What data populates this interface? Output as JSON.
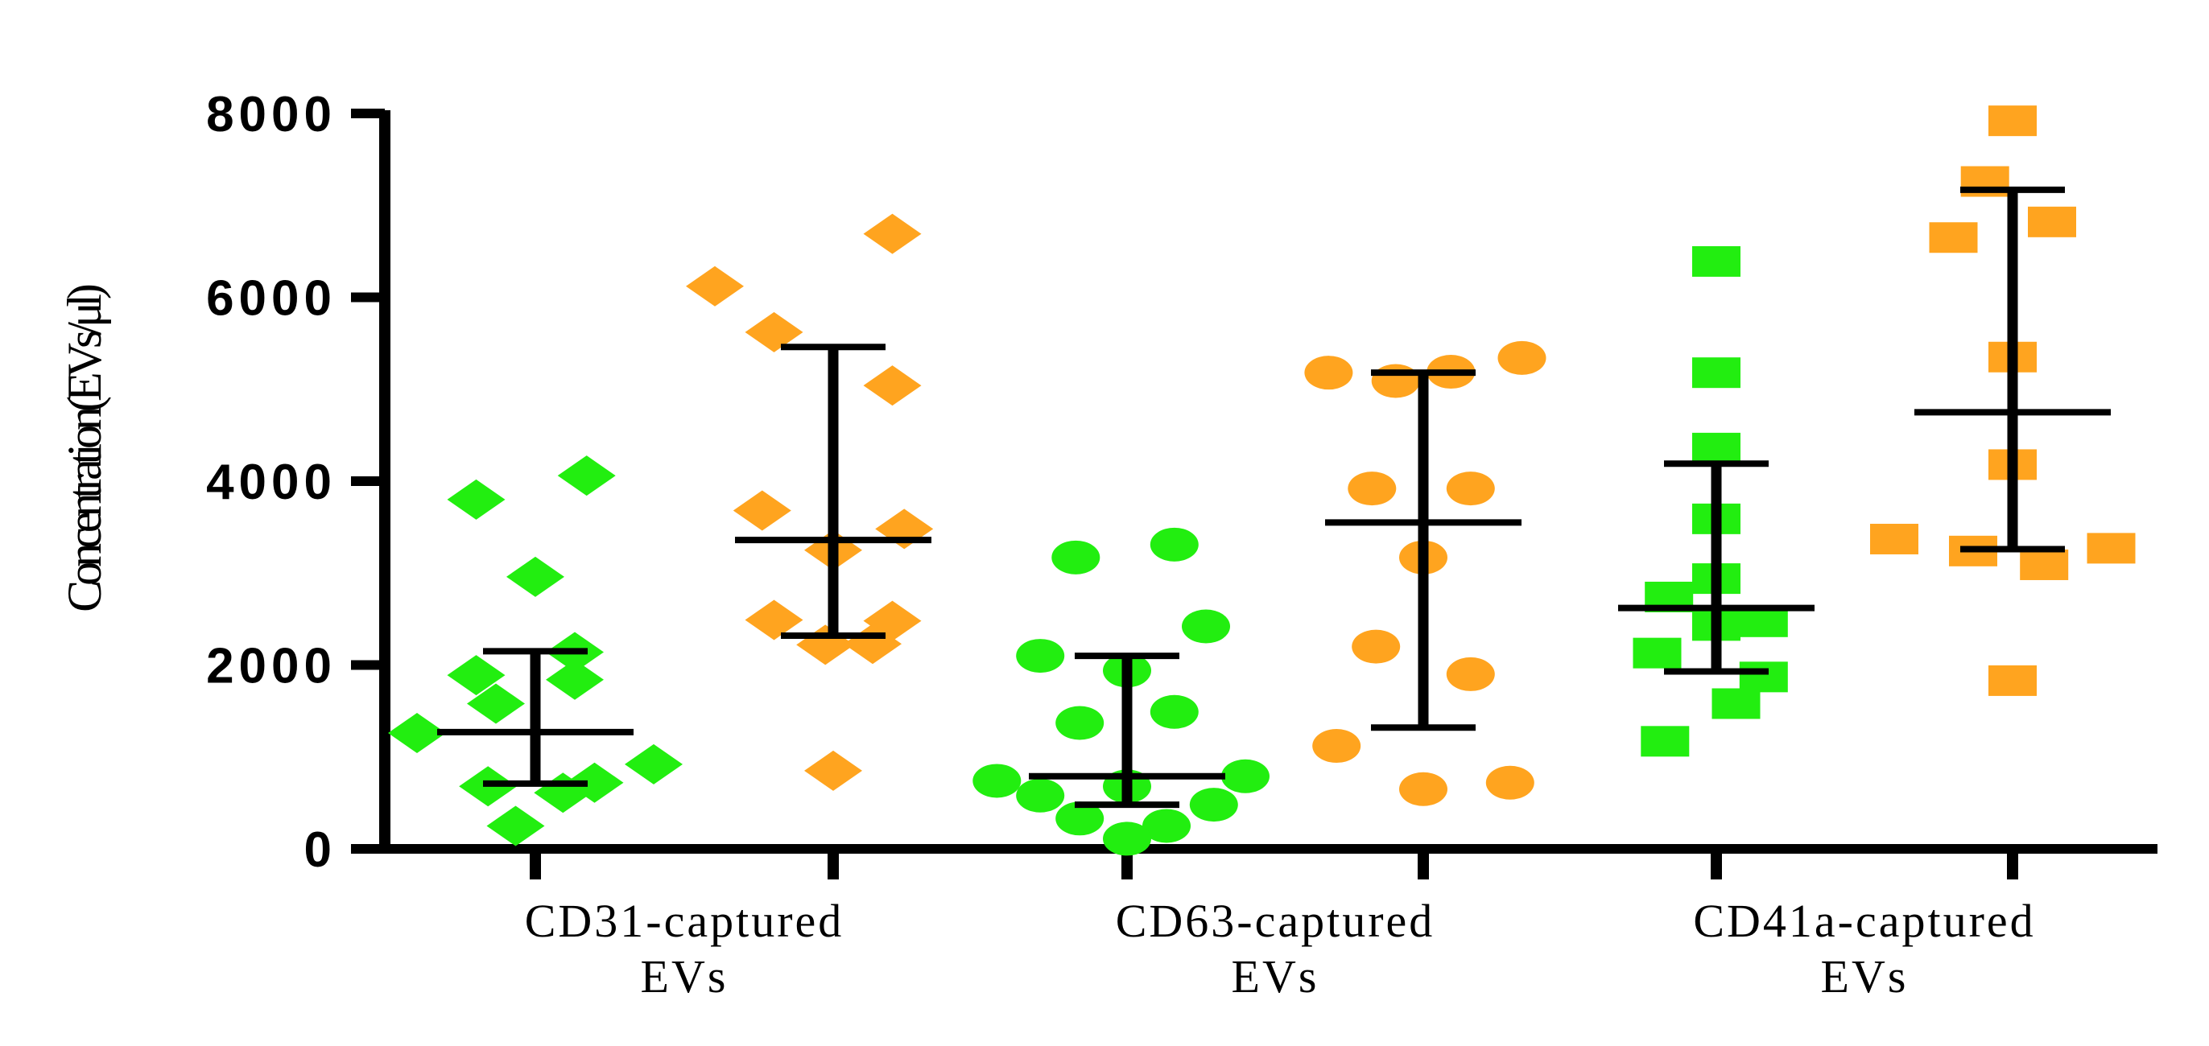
{
  "chart_data": {
    "type": "scatter",
    "title": "",
    "xlabel": "",
    "ylabel": "Concentration(EVs/μl)",
    "ylim": [
      0,
      8000
    ],
    "yticks": [
      0,
      2000,
      4000,
      6000,
      8000
    ],
    "yticks_text": [
      "0",
      "2000",
      "4000",
      "6000",
      "8000"
    ],
    "grid": false,
    "legend": "none",
    "colors": {
      "green": "#22ee10",
      "orange": "#ffa41f",
      "axis": "#000000",
      "errorbar": "#000000"
    },
    "categories": [
      {
        "label_line1": "CD31-captured",
        "label_line2": "EVs"
      },
      {
        "label_line1": "CD63-captured",
        "label_line2": "EVs"
      },
      {
        "label_line1": "CD41a-captured",
        "label_line2": "EVs"
      }
    ],
    "series": [
      {
        "name": "CD31-captured EVs (green)",
        "category": 0,
        "color": "green",
        "marker": "diamond",
        "points": [
          [
            -0.3,
            1260
          ],
          [
            -0.15,
            3800
          ],
          [
            0.13,
            4060
          ],
          [
            0.0,
            2960
          ],
          [
            -0.15,
            1890
          ],
          [
            0.1,
            2140
          ],
          [
            -0.1,
            1580
          ],
          [
            0.1,
            1840
          ],
          [
            -0.12,
            680
          ],
          [
            0.07,
            610
          ],
          [
            0.15,
            720
          ],
          [
            0.3,
            920
          ],
          [
            -0.05,
            250
          ]
        ],
        "mean": 1270,
        "err_low": 710,
        "err_high": 2150
      },
      {
        "name": "CD31-captured EVs (orange)",
        "category": 0,
        "color": "orange",
        "marker": "diamond",
        "points": [
          [
            -0.3,
            6120
          ],
          [
            -0.15,
            5620
          ],
          [
            0.15,
            6690
          ],
          [
            0.15,
            5040
          ],
          [
            -0.18,
            3680
          ],
          [
            0.18,
            3480
          ],
          [
            0.0,
            3250
          ],
          [
            -0.15,
            2490
          ],
          [
            0.15,
            2480
          ],
          [
            -0.02,
            2220
          ],
          [
            0.1,
            2230
          ],
          [
            0.0,
            850
          ]
        ],
        "mean": 3360,
        "err_low": 2320,
        "err_high": 5460
      },
      {
        "name": "CD63-captured EVs (green)",
        "category": 1,
        "color": "green",
        "marker": "circle",
        "points": [
          [
            -0.13,
            3170
          ],
          [
            0.12,
            3310
          ],
          [
            0.2,
            2420
          ],
          [
            -0.22,
            2100
          ],
          [
            0.0,
            1940
          ],
          [
            0.12,
            1490
          ],
          [
            -0.12,
            1370
          ],
          [
            -0.33,
            740
          ],
          [
            -0.22,
            580
          ],
          [
            0.0,
            680
          ],
          [
            0.3,
            790
          ],
          [
            0.22,
            480
          ],
          [
            -0.12,
            330
          ],
          [
            0.1,
            250
          ],
          [
            0.0,
            110
          ]
        ],
        "mean": 790,
        "err_low": 480,
        "err_high": 2100
      },
      {
        "name": "CD63-captured EVs (orange)",
        "category": 1,
        "color": "orange",
        "marker": "circle",
        "points": [
          [
            -0.24,
            5180
          ],
          [
            -0.07,
            5090
          ],
          [
            0.07,
            5190
          ],
          [
            0.25,
            5340
          ],
          [
            -0.13,
            3920
          ],
          [
            0.12,
            3920
          ],
          [
            0.0,
            3170
          ],
          [
            -0.12,
            2200
          ],
          [
            0.12,
            1900
          ],
          [
            -0.22,
            1120
          ],
          [
            0.0,
            650
          ],
          [
            0.22,
            720
          ]
        ],
        "mean": 3550,
        "err_low": 1320,
        "err_high": 5180
      },
      {
        "name": "CD41a-captured EVs (green)",
        "category": 2,
        "color": "green",
        "marker": "square",
        "points": [
          [
            0.0,
            6390
          ],
          [
            0.0,
            5180
          ],
          [
            0.0,
            4360
          ],
          [
            0.0,
            3590
          ],
          [
            -0.12,
            2740
          ],
          [
            0.0,
            2940
          ],
          [
            0.0,
            2430
          ],
          [
            0.12,
            2470
          ],
          [
            -0.15,
            2130
          ],
          [
            0.12,
            1870
          ],
          [
            0.05,
            1580
          ],
          [
            -0.13,
            1170
          ]
        ],
        "mean": 2620,
        "err_low": 1930,
        "err_high": 4190
      },
      {
        "name": "CD41a-captured EVs (orange)",
        "category": 2,
        "color": "orange",
        "marker": "square",
        "points": [
          [
            0.0,
            7920
          ],
          [
            -0.07,
            7260
          ],
          [
            0.1,
            6820
          ],
          [
            -0.15,
            6650
          ],
          [
            0.0,
            5350
          ],
          [
            0.0,
            4180
          ],
          [
            -0.3,
            3370
          ],
          [
            -0.1,
            3240
          ],
          [
            0.08,
            3090
          ],
          [
            0.25,
            3270
          ],
          [
            0.0,
            1830
          ]
        ],
        "mean": 4750,
        "err_low": 3260,
        "err_high": 7170
      }
    ]
  }
}
